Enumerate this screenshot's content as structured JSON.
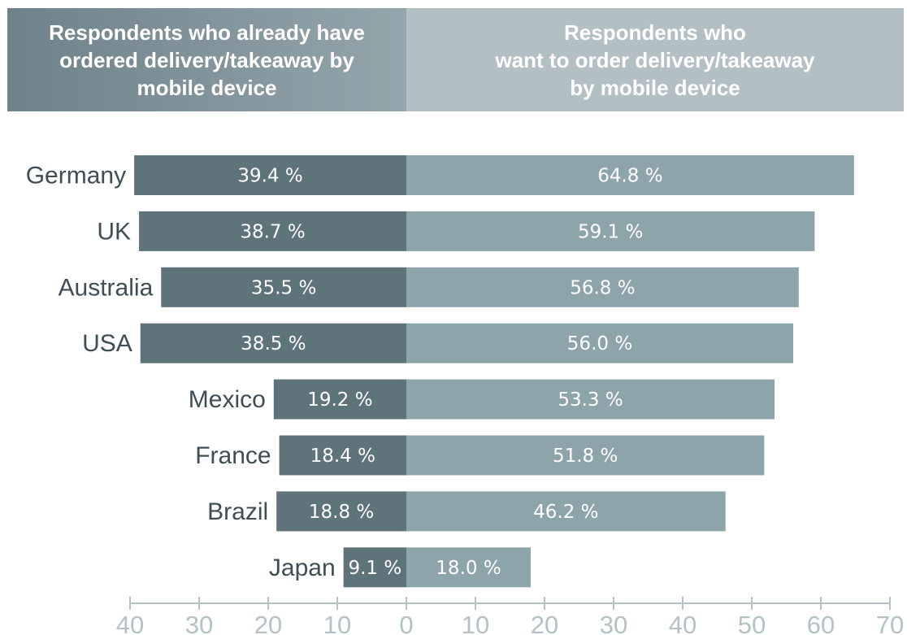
{
  "headers": {
    "left": "Respondents who already have\nordered delivery/takeaway by\nmobile device",
    "right": "Respondents who\nwant to order delivery/takeaway\nby mobile device"
  },
  "colors": {
    "left_bar": "#5f737b",
    "right_bar": "#8ea4ab",
    "label_text": "#3f4d54",
    "axis": "#b4c2c8"
  },
  "chart_data": {
    "type": "bar",
    "orientation": "horizontal-diverging",
    "categories": [
      "Germany",
      "UK",
      "Australia",
      "USA",
      "Mexico",
      "France",
      "Brazil",
      "Japan"
    ],
    "series": [
      {
        "values": [
          39.4,
          38.7,
          35.5,
          38.5,
          19.2,
          18.4,
          18.8,
          9.1
        ],
        "labels": [
          "39.4 %",
          "38.7 %",
          "35.5 %",
          "38.5 %",
          "19.2 %",
          "18.4 %",
          "18.8 %",
          "9.1 %"
        ]
      },
      {
        "values": [
          64.8,
          59.1,
          56.8,
          56.0,
          53.3,
          51.8,
          46.2,
          18.0
        ],
        "labels": [
          "64.8 %",
          "59.1 %",
          "56.8 %",
          "56.0 %",
          "53.3 %",
          "51.8 %",
          "46.2 %",
          "18.0 %"
        ]
      }
    ],
    "x_ticks_left": [
      40,
      30,
      20,
      10
    ],
    "x_ticks_right": [
      0,
      10,
      20,
      30,
      40,
      50,
      60,
      70
    ],
    "xlim": [
      -40,
      70
    ],
    "grid": false
  }
}
